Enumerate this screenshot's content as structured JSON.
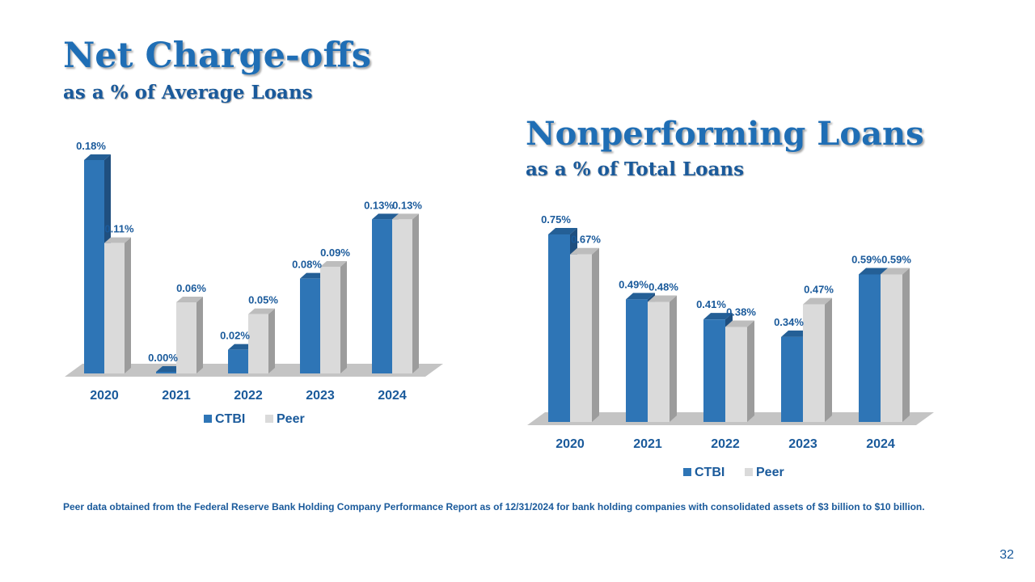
{
  "colors": {
    "ctbi": "#2e75b6",
    "ctbi_dark": "#1f4f7f",
    "peer": "#dadada",
    "peer_dark": "#9c9c9c",
    "label": "#1a5a9b"
  },
  "charts": [
    {
      "title": "Net Charge-offs",
      "subtitle": "as a % of Average Loans"
    },
    {
      "title": "Nonperforming Loans",
      "subtitle": "as a % of Total Loans"
    }
  ],
  "chart_data": [
    {
      "type": "bar",
      "title": "Net Charge-offs",
      "subtitle": "as a % of Average Loans",
      "categories": [
        "2020",
        "2021",
        "2022",
        "2023",
        "2024"
      ],
      "series": [
        {
          "name": "CTBI",
          "values": [
            0.18,
            0.0,
            0.02,
            0.08,
            0.13
          ],
          "labels": [
            "0.18%",
            "0.00%",
            "0.02%",
            "0.08%",
            "0.13%"
          ]
        },
        {
          "name": "Peer",
          "values": [
            0.11,
            0.06,
            0.05,
            0.09,
            0.13
          ],
          "labels": [
            "0.11%",
            "0.06%",
            "0.05%",
            "0.09%",
            "0.13%"
          ]
        }
      ],
      "ylim": [
        0,
        0.18
      ],
      "grid": false,
      "legend": "bottom",
      "xlabel": "",
      "ylabel": ""
    },
    {
      "type": "bar",
      "title": "Nonperforming Loans",
      "subtitle": "as a % of Total Loans",
      "categories": [
        "2020",
        "2021",
        "2022",
        "2023",
        "2024"
      ],
      "series": [
        {
          "name": "CTBI",
          "values": [
            0.75,
            0.49,
            0.41,
            0.34,
            0.59
          ],
          "labels": [
            "0.75%",
            "0.49%",
            "0.41%",
            "0.34%",
            "0.59%"
          ]
        },
        {
          "name": "Peer",
          "values": [
            0.67,
            0.48,
            0.38,
            0.47,
            0.59
          ],
          "labels": [
            "0.67%",
            "0.48%",
            "0.38%",
            "0.47%",
            "0.59%"
          ]
        }
      ],
      "ylim": [
        0,
        0.75
      ],
      "grid": false,
      "legend": "bottom",
      "xlabel": "",
      "ylabel": ""
    }
  ],
  "footnote": "Peer data obtained from the Federal Reserve Bank Holding Company Performance Report as of 12/31/2024 for bank holding companies with consolidated assets of $3 billion to $10 billion.",
  "page_number": "32"
}
